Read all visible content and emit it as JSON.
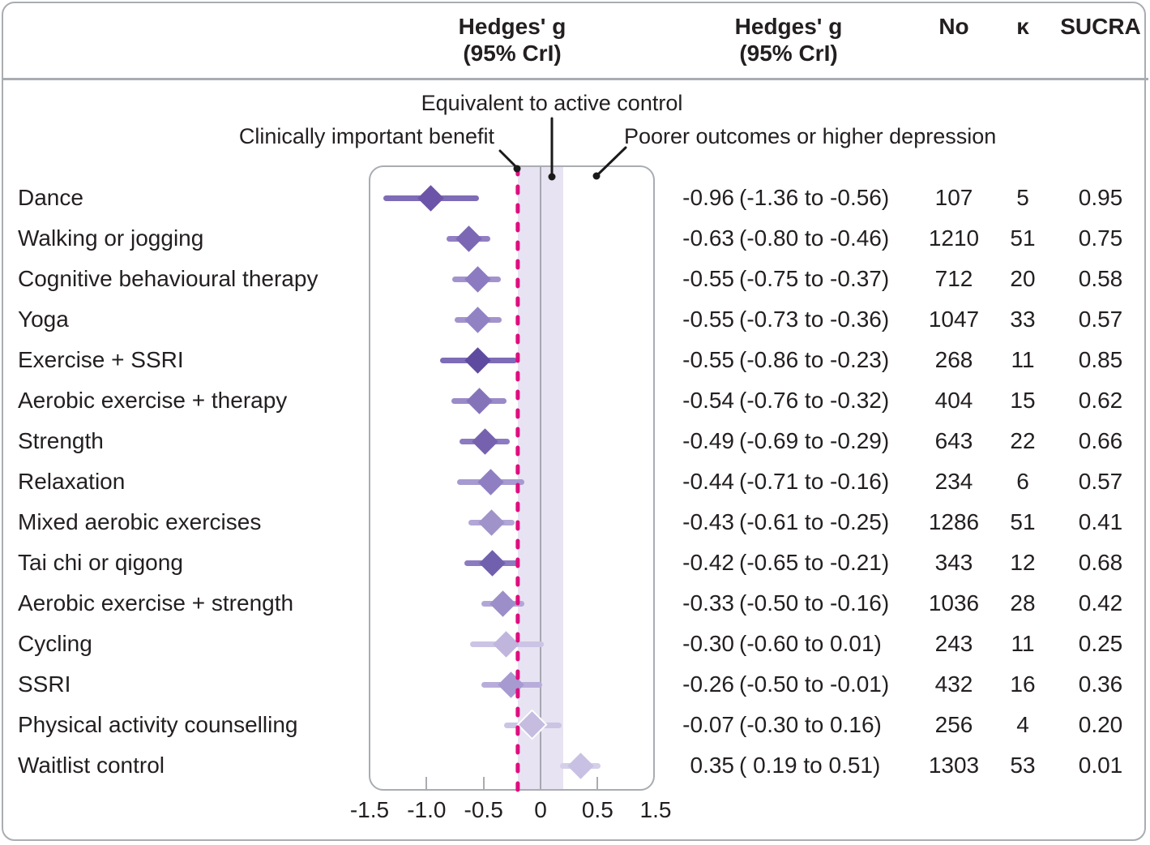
{
  "figure": {
    "background": "#ffffff",
    "border_color": "#a9adb2",
    "text_color": "#231f20"
  },
  "header": {
    "hedges_left_1": "Hedges' g",
    "hedges_left_2": "(95% CrI)",
    "hedges_right_1": "Hedges' g",
    "hedges_right_2": "(95% CrI)",
    "no": "No",
    "kappa": "κ",
    "sucra": "SUCRA"
  },
  "annotations": {
    "equivalent": "Equivalent to active control",
    "benefit": "Clinically important benefit",
    "poorer": "Poorer outcomes or higher depression"
  },
  "colors": {
    "band": "#e7e3f2",
    "zero_line": "#a8a8b0",
    "threshold_line": "#df0d7f",
    "leader_line": "#1a1a1a"
  },
  "chart_data": {
    "type": "forest",
    "effect_measure": "Hedges' g (95% CrI)",
    "x_axis": {
      "tick_labels": [
        "-1.5",
        "-1.0",
        "-0.5",
        "0",
        "0.5",
        "1.5"
      ],
      "tick_values": [
        -1.5,
        -1.0,
        -0.5,
        0,
        0.5,
        1.5
      ],
      "linear_range": [
        -1.5,
        0.5
      ],
      "compressed_right_edge_value": 1.5
    },
    "reference_line": 0,
    "clinically_important_threshold": -0.2,
    "equivalence_band": [
      -0.2,
      0.2
    ],
    "rows": [
      {
        "label": "Dance",
        "mean": -0.96,
        "lo": -1.36,
        "hi": -0.56,
        "value_text": "-0.96",
        "ci_text": "(-1.36 to -0.56)",
        "no": "107",
        "k": "5",
        "sucra": "0.95",
        "diamond_color": "#6c54a8",
        "line_color": "#7e6cb7",
        "white_outline": false
      },
      {
        "label": "Walking or jogging",
        "mean": -0.63,
        "lo": -0.8,
        "hi": -0.46,
        "value_text": "-0.63",
        "ci_text": "(-0.80 to -0.46)",
        "no": "1210",
        "k": "51",
        "sucra": "0.75",
        "diamond_color": "#7b67b3",
        "line_color": "#927fc3",
        "white_outline": false
      },
      {
        "label": "Cognitive behavioural therapy",
        "mean": -0.55,
        "lo": -0.75,
        "hi": -0.37,
        "value_text": "-0.55",
        "ci_text": "(-0.75 to -0.37)",
        "no": "712",
        "k": "20",
        "sucra": "0.58",
        "diamond_color": "#8c7bc0",
        "line_color": "#a393cd",
        "white_outline": false
      },
      {
        "label": "Yoga",
        "mean": -0.55,
        "lo": -0.73,
        "hi": -0.36,
        "value_text": "-0.55",
        "ci_text": "(-0.73 to -0.36)",
        "no": "1047",
        "k": "33",
        "sucra": "0.57",
        "diamond_color": "#9182c4",
        "line_color": "#a393cd",
        "white_outline": false
      },
      {
        "label": "Exercise + SSRI",
        "mean": -0.55,
        "lo": -0.86,
        "hi": -0.23,
        "value_text": "-0.55",
        "ci_text": "(-0.86 to -0.23)",
        "no": "268",
        "k": "11",
        "sucra": "0.85",
        "diamond_color": "#5e4ba0",
        "line_color": "#7e6cb7",
        "white_outline": false
      },
      {
        "label": "Aerobic exercise + therapy",
        "mean": -0.54,
        "lo": -0.76,
        "hi": -0.32,
        "value_text": "-0.54",
        "ci_text": "(-0.76 to -0.32)",
        "no": "404",
        "k": "15",
        "sucra": "0.62",
        "diamond_color": "#8573ba",
        "line_color": "#9a8ac8",
        "white_outline": false
      },
      {
        "label": "Strength",
        "mean": -0.49,
        "lo": -0.69,
        "hi": -0.29,
        "value_text": "-0.49",
        "ci_text": "(-0.69 to -0.29)",
        "no": "643",
        "k": "22",
        "sucra": "0.66",
        "diamond_color": "#7561ae",
        "line_color": "#8c7bc0",
        "white_outline": false
      },
      {
        "label": "Relaxation",
        "mean": -0.44,
        "lo": -0.71,
        "hi": -0.16,
        "value_text": "-0.44",
        "ci_text": "(-0.71 to -0.16)",
        "no": "234",
        "k": "6",
        "sucra": "0.57",
        "diamond_color": "#8f7fc2",
        "line_color": "#a79ad1",
        "white_outline": false
      },
      {
        "label": "Mixed aerobic exercises",
        "mean": -0.43,
        "lo": -0.61,
        "hi": -0.25,
        "value_text": "-0.43",
        "ci_text": "(-0.61 to -0.25)",
        "no": "1286",
        "k": "51",
        "sucra": "0.41",
        "diamond_color": "#a093ca",
        "line_color": "#b2a6d7",
        "white_outline": false
      },
      {
        "label": "Tai chi or qigong",
        "mean": -0.42,
        "lo": -0.65,
        "hi": -0.21,
        "value_text": "-0.42",
        "ci_text": "(-0.65 to -0.21)",
        "no": "343",
        "k": "12",
        "sucra": "0.68",
        "diamond_color": "#7160ad",
        "line_color": "#8c7bc0",
        "white_outline": false
      },
      {
        "label": "Aerobic exercise + strength",
        "mean": -0.33,
        "lo": -0.5,
        "hi": -0.16,
        "value_text": "-0.33",
        "ci_text": "(-0.50 to -0.16)",
        "no": "1036",
        "k": "28",
        "sucra": "0.42",
        "diamond_color": "#9c8ec8",
        "line_color": "#b2a6d7",
        "white_outline": false
      },
      {
        "label": "Cycling",
        "mean": -0.3,
        "lo": -0.6,
        "hi": 0.01,
        "value_text": "-0.30",
        "ci_text": "(-0.60 to  0.01)",
        "no": "243",
        "k": "11",
        "sucra": "0.25",
        "diamond_color": "#bfb5dd",
        "line_color": "#ccc4e4",
        "white_outline": false
      },
      {
        "label": "SSRI",
        "mean": -0.26,
        "lo": -0.5,
        "hi": -0.01,
        "value_text": "-0.26",
        "ci_text": "(-0.50 to -0.01)",
        "no": "432",
        "k": "16",
        "sucra": "0.36",
        "diamond_color": "#a79ad1",
        "line_color": "#b8adda",
        "white_outline": false
      },
      {
        "label": "Physical activity counselling",
        "mean": -0.07,
        "lo": -0.3,
        "hi": 0.16,
        "value_text": "-0.07",
        "ci_text": "(-0.30 to  0.16)",
        "no": "256",
        "k": "4",
        "sucra": "0.20",
        "diamond_color": "#c5bce0",
        "line_color": "#ccc4e4",
        "white_outline": true
      },
      {
        "label": "Waitlist control",
        "mean": 0.35,
        "lo": 0.19,
        "hi": 0.51,
        "value_text": "0.35",
        "ci_text": "( 0.19 to  0.51)",
        "no": "1303",
        "k": "53",
        "sucra": "0.01",
        "diamond_color": "#c9c1e3",
        "line_color": "#d5cfea",
        "white_outline": false
      }
    ]
  }
}
